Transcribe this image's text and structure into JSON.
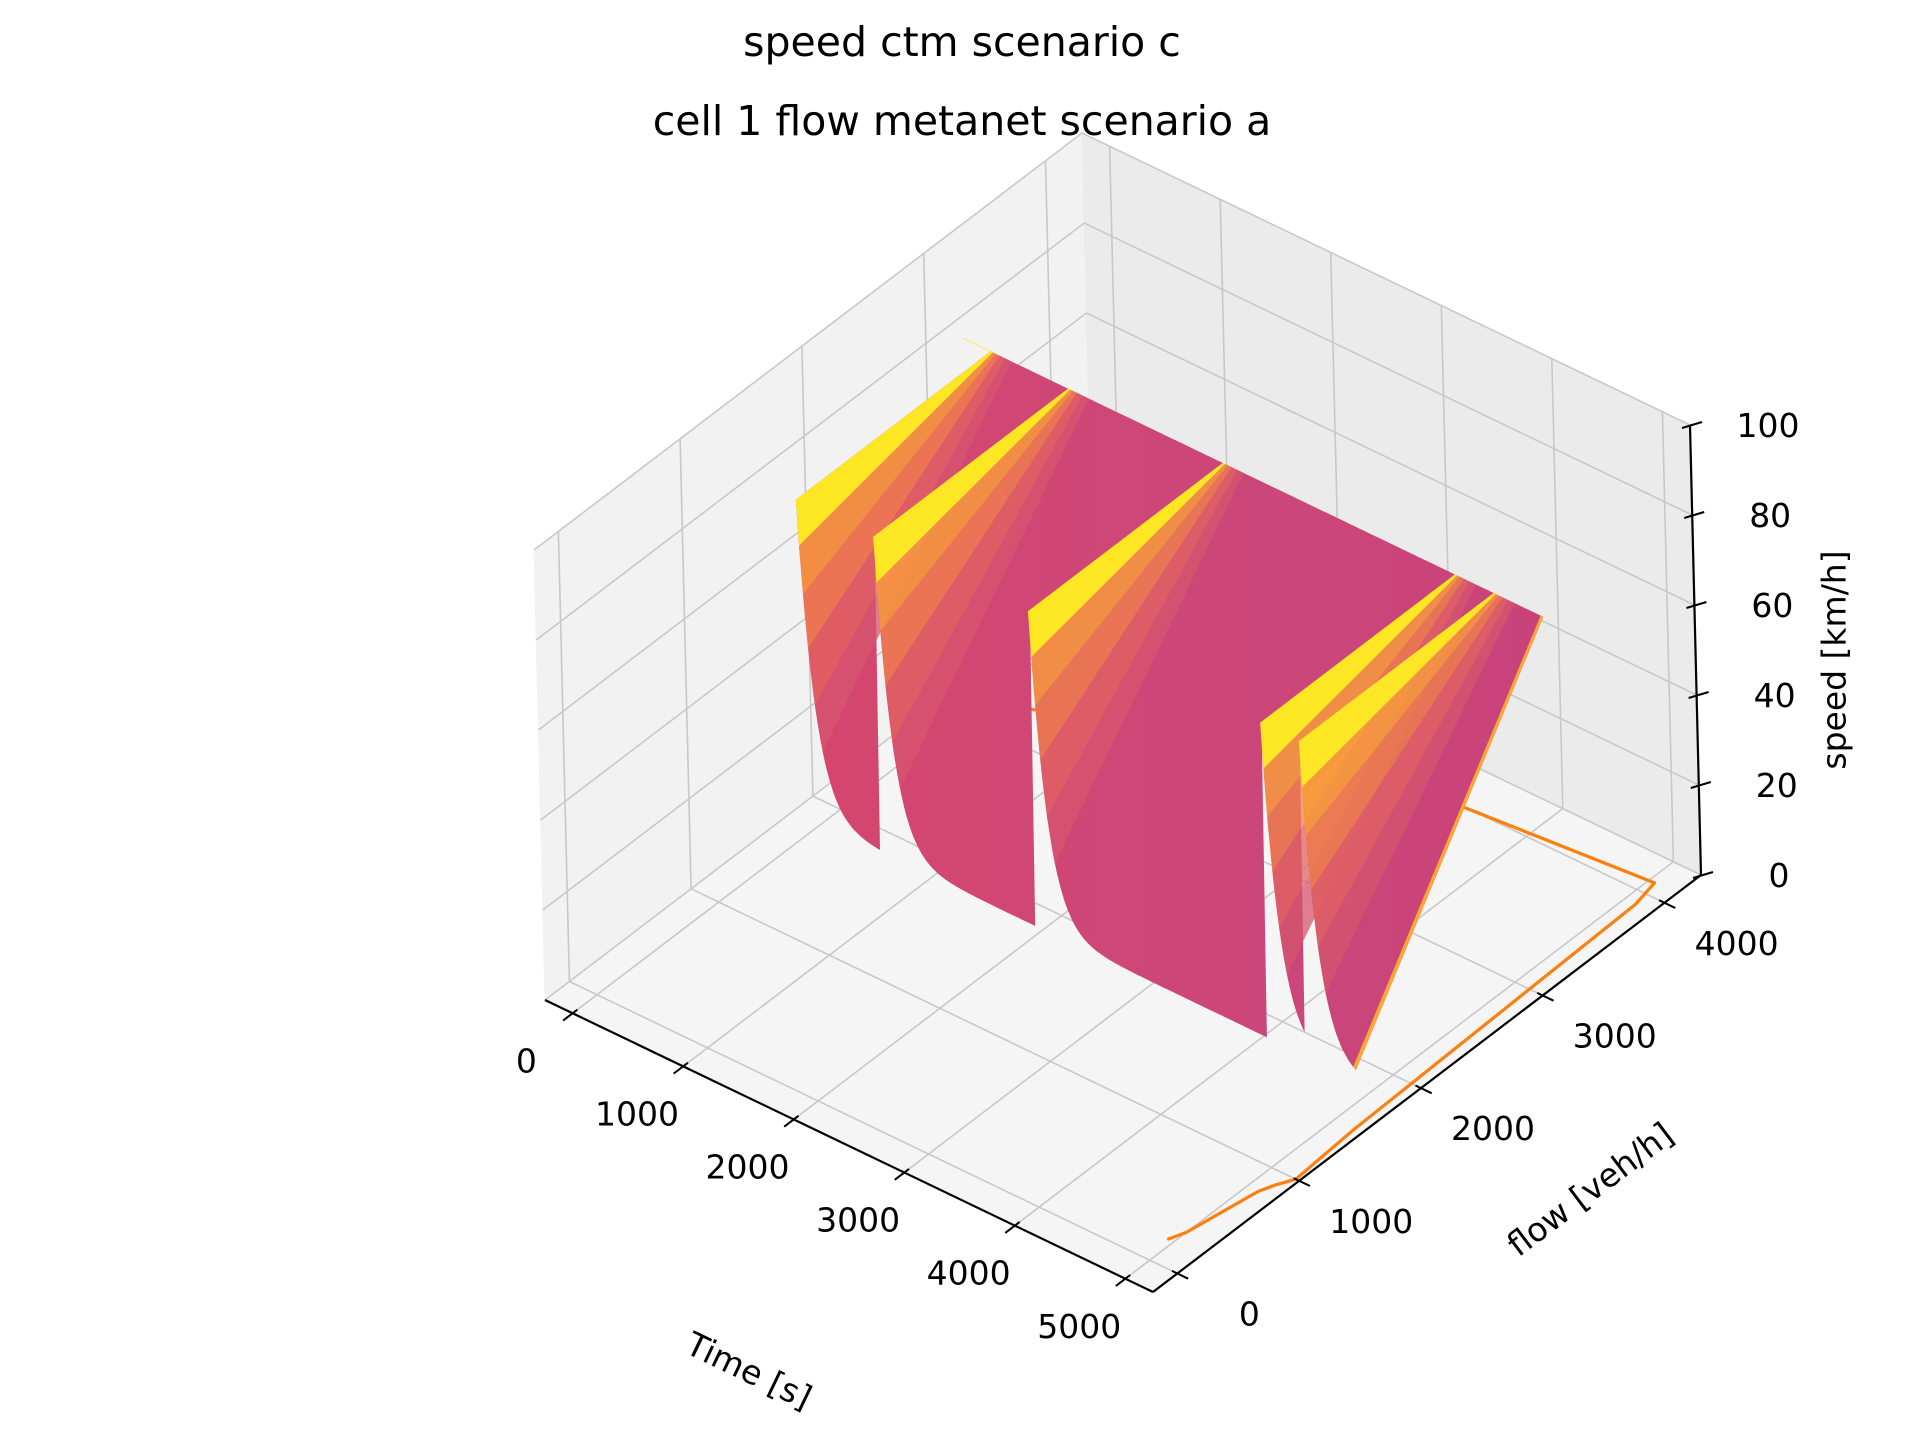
{
  "chart_data": {
    "type": "surface",
    "title": "speed ctm scenario c",
    "subtitle": "cell 1 flow metanet scenario a",
    "xlabel": "Time [s]",
    "ylabel": "flow [veh/h]",
    "zlabel": "speed [km/h]",
    "xlim": [
      -250,
      5250
    ],
    "ylim": [
      -200,
      4300
    ],
    "zlim": [
      0,
      100
    ],
    "x_ticks": [
      0,
      1000,
      2000,
      3000,
      4000,
      5000
    ],
    "y_ticks": [
      0,
      1000,
      2000,
      3000,
      4000
    ],
    "z_ticks": [
      0,
      20,
      40,
      60,
      80,
      100
    ],
    "x_tick_labels": [
      "0",
      "1000",
      "2000",
      "3000",
      "4000",
      "5000"
    ],
    "y_tick_labels": [
      "0",
      "1000",
      "2000",
      "3000",
      "4000"
    ],
    "z_tick_labels": [
      "0",
      "20",
      "40",
      "60",
      "80",
      "100"
    ],
    "grid": true,
    "colormap": "plasma",
    "surface": {
      "time_range": [
        0,
        5000
      ],
      "flow_range": [
        1700,
        3300
      ],
      "speed_range": [
        5,
        75
      ],
      "band_boundaries": [
        700,
        2100,
        4200,
        4550
      ]
    },
    "projection_line": {
      "color": "#ff7f0e",
      "plane": "speed = 0",
      "points": [
        {
          "time": 0,
          "flow": 3200
        },
        {
          "time": 150,
          "flow": 3200
        },
        {
          "time": 2000,
          "flow": 3900
        },
        {
          "time": 5050,
          "flow": 4100
        },
        {
          "time": 5100,
          "flow": 3900
        },
        {
          "time": 5150,
          "flow": 2400
        },
        {
          "time": 5180,
          "flow": 1500
        },
        {
          "time": 5220,
          "flow": 1000
        },
        {
          "time": 5150,
          "flow": 900
        },
        {
          "time": 5100,
          "flow": 800
        },
        {
          "time": 5000,
          "flow": 300
        },
        {
          "time": 4950,
          "flow": 200
        }
      ]
    }
  }
}
